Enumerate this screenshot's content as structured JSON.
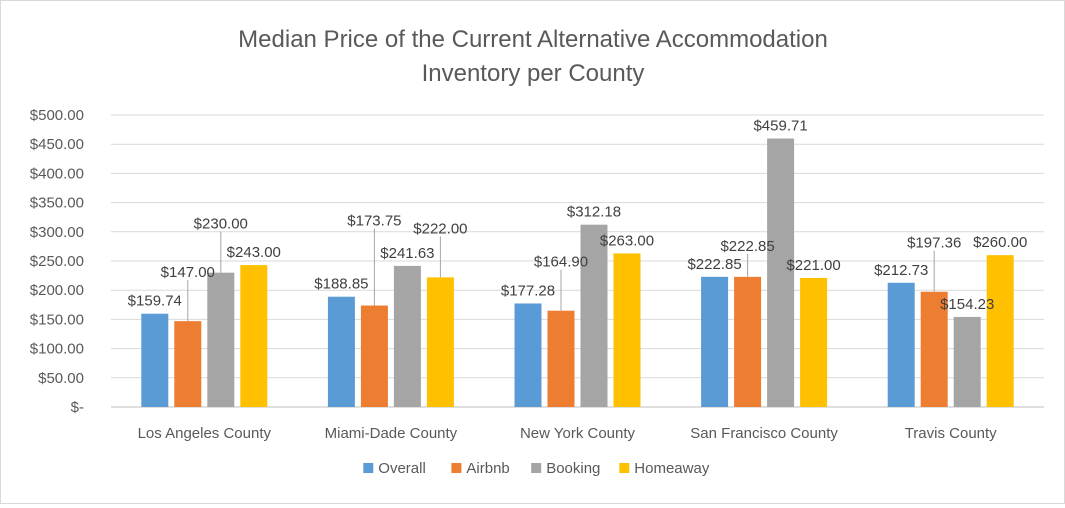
{
  "chart_data": {
    "type": "bar",
    "title_lines": [
      "Median Price of the Current Alternative Accommodation",
      "Inventory per County"
    ],
    "categories": [
      "Los Angeles County",
      "Miami-Dade County",
      "New York County",
      "San Francisco County",
      "Travis County"
    ],
    "series": [
      {
        "name": "Overall",
        "color": "#5b9bd5",
        "values": [
          159.74,
          188.85,
          177.28,
          222.85,
          212.73
        ],
        "labels": [
          "$159.74",
          "$188.85",
          "$177.28",
          "$222.85",
          "$212.73"
        ]
      },
      {
        "name": "Airbnb",
        "color": "#ed7d31",
        "values": [
          147.0,
          173.75,
          164.9,
          222.85,
          197.36
        ],
        "labels": [
          "$147.00",
          "$173.75",
          "$164.90",
          "$222.85",
          "$197.36"
        ]
      },
      {
        "name": "Booking",
        "color": "#a5a5a5",
        "values": [
          230.0,
          241.63,
          312.18,
          459.71,
          154.23
        ],
        "labels": [
          "$230.00",
          "$241.63",
          "$312.18",
          "$459.71",
          "$154.23"
        ]
      },
      {
        "name": "Homeaway",
        "color": "#ffc000",
        "values": [
          243.0,
          222.0,
          263.0,
          221.0,
          260.0
        ],
        "labels": [
          "$243.00",
          "$222.00",
          "$263.00",
          "$221.00",
          "$260.00"
        ]
      }
    ],
    "ylim": [
      0,
      500
    ],
    "y_ticks": [
      0,
      50,
      100,
      150,
      200,
      250,
      300,
      350,
      400,
      450,
      500
    ],
    "y_tick_labels": [
      "$-",
      "$50.00",
      "$100.00",
      "$150.00",
      "$200.00",
      "$250.00",
      "$300.00",
      "$350.00",
      "$400.00",
      "$450.00",
      "$500.00"
    ],
    "grid": true,
    "legend_position": "bottom",
    "xlabel": "",
    "ylabel": ""
  }
}
